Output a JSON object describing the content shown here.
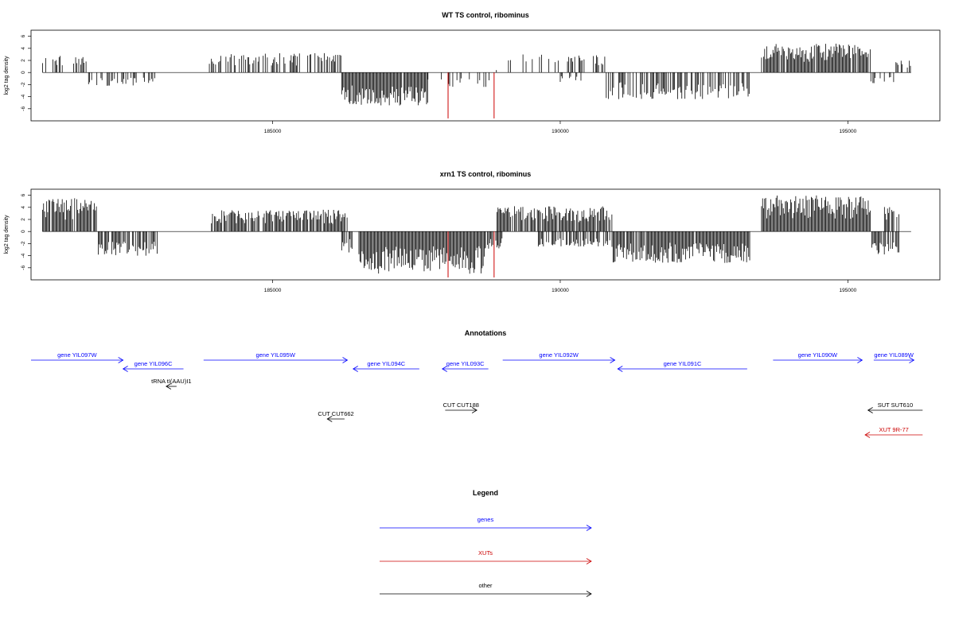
{
  "chart_data": [
    {
      "type": "bar",
      "title": "WT TS control, ribominus",
      "ylabel": "log2 tag density",
      "xlim": [
        180800,
        196600
      ],
      "ylim": [
        -8,
        7
      ],
      "yticks": [
        6,
        4,
        2,
        0,
        -2,
        -4,
        -6
      ],
      "xticks": [
        185000,
        190000,
        195000
      ],
      "grid": false,
      "segments": [
        {
          "from": 181000,
          "to": 181800,
          "sign": 1,
          "amp": 2.8,
          "density": 0.4
        },
        {
          "from": 181800,
          "to": 183000,
          "sign": -1,
          "amp": 2.2,
          "density": 0.45
        },
        {
          "from": 183900,
          "to": 186200,
          "sign": 1,
          "amp": 3.2,
          "density": 0.5
        },
        {
          "from": 186200,
          "to": 187700,
          "sign": -1,
          "amp": 5.5,
          "density": 0.95
        },
        {
          "from": 187700,
          "to": 188800,
          "sign": -1,
          "amp": 2.5,
          "density": 0.25
        },
        {
          "from": 188800,
          "to": 189000,
          "sign": 1,
          "amp": 1.0,
          "density": 0.3
        },
        {
          "from": 189100,
          "to": 190800,
          "sign": 1,
          "amp": 3.0,
          "density": 0.4
        },
        {
          "from": 190000,
          "to": 190400,
          "sign": -1,
          "amp": 1.6,
          "density": 0.3
        },
        {
          "from": 190800,
          "to": 193300,
          "sign": -1,
          "amp": 4.5,
          "density": 0.65
        },
        {
          "from": 193500,
          "to": 195400,
          "sign": 1,
          "amp": 4.8,
          "density": 0.95
        },
        {
          "from": 195400,
          "to": 195800,
          "sign": -1,
          "amp": 2.0,
          "density": 0.4
        },
        {
          "from": 195800,
          "to": 196100,
          "sign": 1,
          "amp": 2.0,
          "density": 0.5
        }
      ],
      "highlights": [
        {
          "x": 188050,
          "y": -7.6,
          "color": "#cc0000"
        },
        {
          "x": 188850,
          "y": -7.6,
          "color": "#cc0000"
        }
      ]
    },
    {
      "type": "bar",
      "title": "xrn1 TS control, ribominus",
      "ylabel": "log2 tag density",
      "xlim": [
        180800,
        196600
      ],
      "ylim": [
        -8,
        7
      ],
      "yticks": [
        6,
        4,
        2,
        0,
        -2,
        -4,
        -6
      ],
      "xticks": [
        185000,
        190000,
        195000
      ],
      "grid": false,
      "segments": [
        {
          "from": 181000,
          "to": 181950,
          "sign": 1,
          "amp": 5.5,
          "density": 0.9
        },
        {
          "from": 181950,
          "to": 183000,
          "sign": -1,
          "amp": 4.0,
          "density": 0.8
        },
        {
          "from": 183900,
          "to": 186300,
          "sign": 1,
          "amp": 3.6,
          "density": 0.9
        },
        {
          "from": 186200,
          "to": 186500,
          "sign": -1,
          "amp": 3.5,
          "density": 0.6
        },
        {
          "from": 186500,
          "to": 188700,
          "sign": -1,
          "amp": 7.0,
          "density": 1.0
        },
        {
          "from": 188700,
          "to": 189000,
          "sign": -1,
          "amp": 3.0,
          "density": 0.8
        },
        {
          "from": 188900,
          "to": 190900,
          "sign": 1,
          "amp": 4.2,
          "density": 0.9
        },
        {
          "from": 189600,
          "to": 190900,
          "sign": -1,
          "amp": 2.5,
          "density": 0.7
        },
        {
          "from": 190900,
          "to": 193300,
          "sign": -1,
          "amp": 5.2,
          "density": 0.95
        },
        {
          "from": 193500,
          "to": 195400,
          "sign": 1,
          "amp": 6.0,
          "density": 1.0
        },
        {
          "from": 195400,
          "to": 195900,
          "sign": -1,
          "amp": 3.8,
          "density": 0.8
        },
        {
          "from": 195600,
          "to": 195900,
          "sign": 1,
          "amp": 4.2,
          "density": 0.6
        }
      ],
      "highlights": [
        {
          "x": 188050,
          "y": -7.6,
          "color": "#cc0000"
        },
        {
          "x": 188850,
          "y": -7.6,
          "color": "#cc0000"
        }
      ]
    }
  ],
  "annotations": {
    "title": "Annotations",
    "items": [
      {
        "label": "gene YIL097W",
        "dir": "right",
        "color": "#0000ff",
        "start": 180800,
        "end": 182400,
        "row": 0
      },
      {
        "label": "gene YIL096C",
        "dir": "left",
        "color": "#0000ff",
        "start": 182400,
        "end": 183450,
        "row": 1
      },
      {
        "label": "tRNA tI(AAU)I1",
        "dir": "left",
        "color": "#000000",
        "start": 183150,
        "end": 183330,
        "row": 2
      },
      {
        "label": "gene YIL095W",
        "dir": "right",
        "color": "#0000ff",
        "start": 183800,
        "end": 186300,
        "row": 0
      },
      {
        "label": "CUT CUT662",
        "dir": "left",
        "color": "#000000",
        "start": 185950,
        "end": 186250,
        "row": 4
      },
      {
        "label": "gene YIL094C",
        "dir": "left",
        "color": "#0000ff",
        "start": 186400,
        "end": 187550,
        "row": 1
      },
      {
        "label": "CUT CUT188",
        "dir": "right",
        "color": "#000000",
        "start": 188000,
        "end": 188550,
        "row": 3
      },
      {
        "label": "gene YIL093C",
        "dir": "left",
        "color": "#0000ff",
        "start": 187950,
        "end": 188750,
        "row": 1
      },
      {
        "label": "gene YIL092W",
        "dir": "right",
        "color": "#0000ff",
        "start": 189000,
        "end": 190950,
        "row": 0
      },
      {
        "label": "gene YIL091C",
        "dir": "left",
        "color": "#0000ff",
        "start": 191000,
        "end": 193250,
        "row": 1
      },
      {
        "label": "gene YIL090W",
        "dir": "right",
        "color": "#0000ff",
        "start": 193700,
        "end": 195250,
        "row": 0
      },
      {
        "label": "gene YIL089W",
        "dir": "right",
        "color": "#0000ff",
        "start": 195450,
        "end": 196150,
        "row": 0
      },
      {
        "label": "SUT SUT610",
        "dir": "left",
        "color": "#000000",
        "start": 195350,
        "end": 196300,
        "row": 3
      },
      {
        "label": "XUT 9R-77",
        "dir": "left",
        "color": "#cc0000",
        "start": 195300,
        "end": 196300,
        "row": 5
      }
    ]
  },
  "legend": {
    "title": "Legend",
    "entries": [
      {
        "label": "genes",
        "color": "#0000ff"
      },
      {
        "label": "XUTs",
        "color": "#cc0000"
      },
      {
        "label": "other",
        "color": "#000000"
      }
    ]
  }
}
